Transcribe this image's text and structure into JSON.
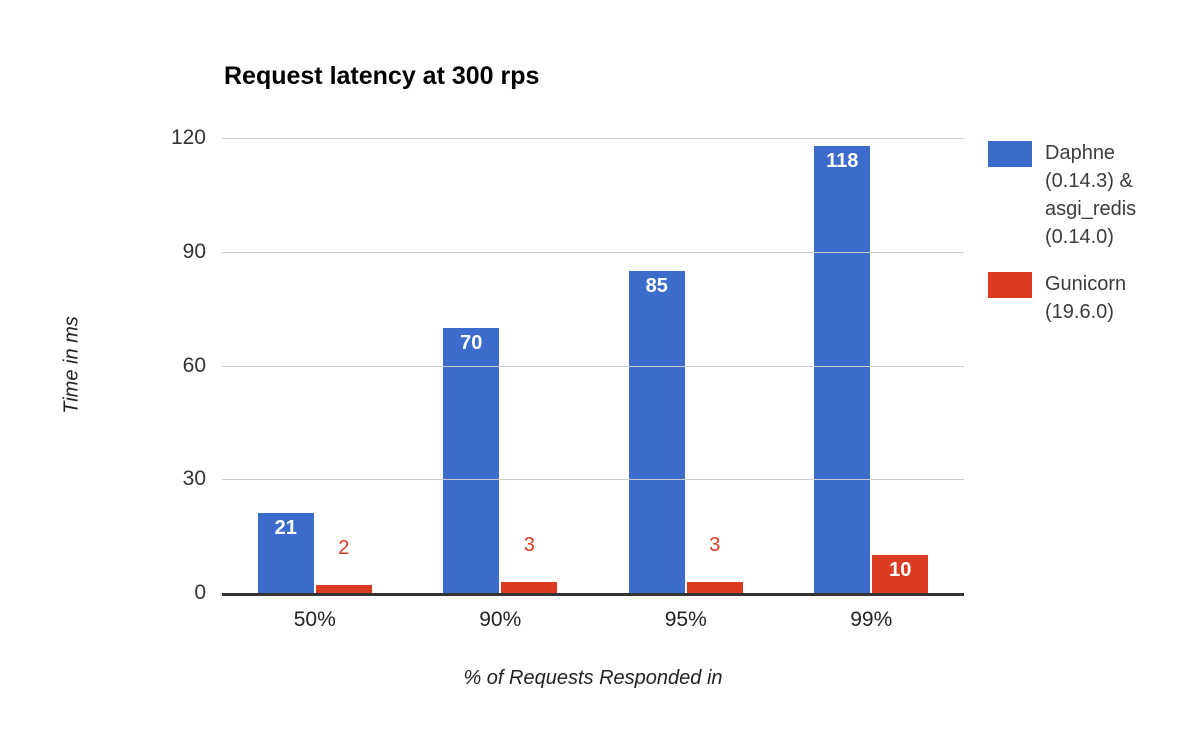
{
  "title": "Request latency at 300 rps",
  "colors": {
    "series_daphne": "#3B6CCB",
    "series_gunicorn": "#DA3B21",
    "gridline": "#cccccc",
    "baseline": "#333333",
    "in_bar_label": "#ffffff"
  },
  "chart_data": {
    "type": "bar",
    "title": "Request latency at 300 rps",
    "xlabel": "% of Requests Responded in",
    "ylabel": "Time in ms",
    "categories": [
      "50%",
      "90%",
      "95%",
      "99%"
    ],
    "series": [
      {
        "name": "Daphne (0.14.3) & asgi_redis (0.14.0)",
        "legend_lines": [
          "Daphne",
          "(0.14.3) &",
          "asgi_redis",
          "(0.14.0)"
        ],
        "color": "#3B6CCB",
        "values": [
          21,
          70,
          85,
          118
        ]
      },
      {
        "name": "Gunicorn (19.6.0)",
        "legend_lines": [
          "Gunicorn",
          "(19.6.0)"
        ],
        "color": "#DA3B21",
        "values": [
          2,
          3,
          3,
          10
        ]
      }
    ],
    "ylim": [
      0,
      120
    ],
    "yticks": [
      0,
      30,
      60,
      90,
      120
    ],
    "grid": true,
    "legend_position": "right"
  }
}
